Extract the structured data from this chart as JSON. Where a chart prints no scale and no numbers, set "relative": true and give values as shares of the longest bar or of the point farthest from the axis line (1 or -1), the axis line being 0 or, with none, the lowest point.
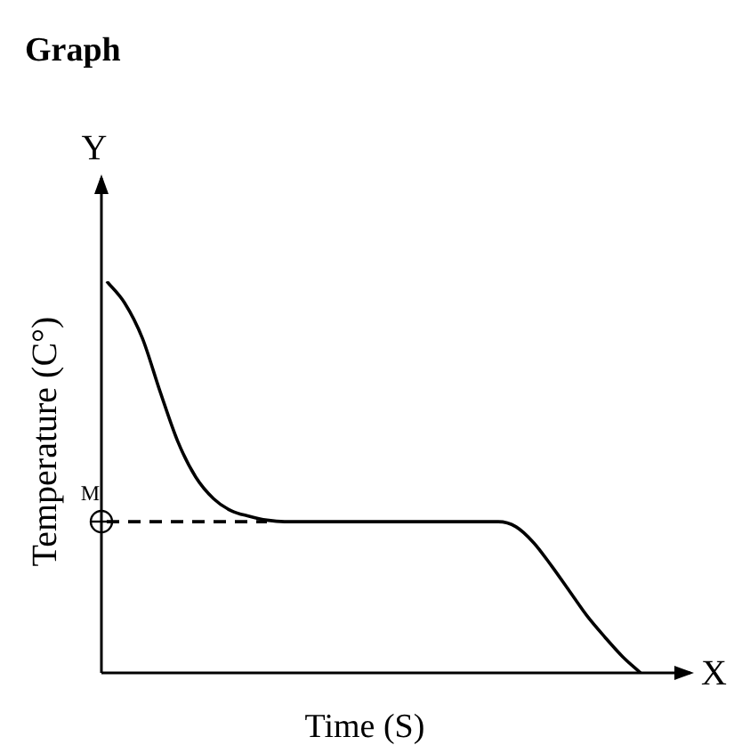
{
  "chart_data": {
    "type": "line",
    "title": "Graph",
    "xlabel": "Time (S)",
    "ylabel": "Temperature (C°)",
    "relative": true,
    "legend": false,
    "tick_labels": false,
    "categories": [
      null,
      null,
      null,
      null,
      null,
      null,
      null,
      null,
      null,
      null,
      null,
      null,
      null,
      null,
      null,
      null,
      null,
      null,
      null,
      null,
      null,
      null,
      null,
      null,
      null,
      null,
      null,
      null,
      null,
      null,
      null
    ],
    "series": [
      {
        "color": "#000000",
        "line_style": "solid",
        "values": [
          1.0,
          0.945,
          0.855,
          0.718,
          0.59,
          0.5,
          0.445,
          0.414,
          0.4,
          0.39,
          0.386,
          0.386,
          0.386,
          0.386,
          0.386,
          0.386,
          0.386,
          0.386,
          0.386,
          0.386,
          0.386,
          0.386,
          0.386,
          0.373,
          0.332,
          0.273,
          0.209,
          0.145,
          0.091,
          0.041,
          0.0
        ]
      },
      {
        "color": "#000000",
        "line_style": "dashed",
        "values": [
          0.386,
          0.386,
          0.386,
          0.386,
          0.386,
          0.386,
          0.386,
          0.386,
          0.386,
          0.386,
          null,
          null,
          null,
          null,
          null,
          null,
          null,
          null,
          null,
          null,
          null,
          null,
          null,
          null,
          null,
          null,
          null,
          null,
          null,
          null,
          null
        ]
      }
    ],
    "annotations": [
      "M",
      "Y",
      "X"
    ]
  }
}
